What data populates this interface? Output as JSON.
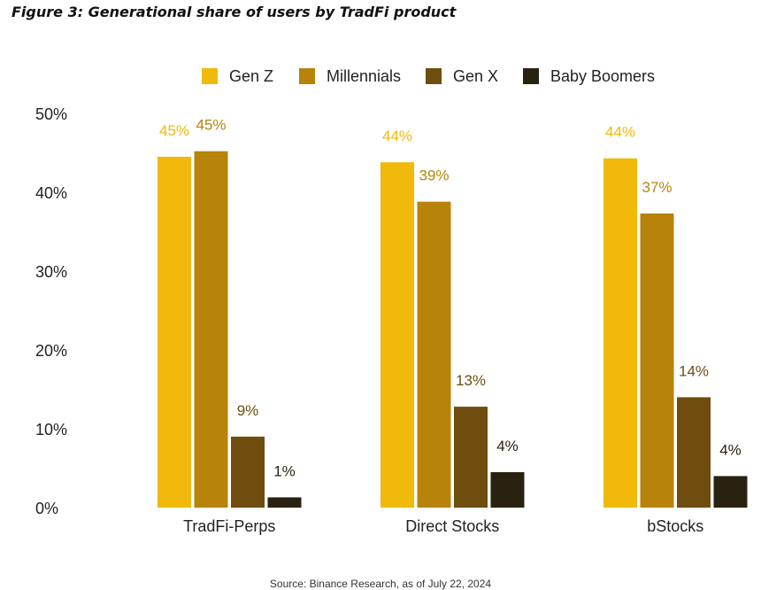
{
  "figure_title": "Figure 3: Generational share of users by TradFi product",
  "source_note": "Source: Binance Research, as of July 22, 2024",
  "chart_data": {
    "type": "bar",
    "title": "",
    "xlabel": "",
    "ylabel": "",
    "categories": [
      "TradFi-Perps",
      "Direct Stocks",
      "bStocks"
    ],
    "series": [
      {
        "name": "Gen Z",
        "color": "#F0B90B",
        "values": [
          44.5,
          43.8,
          44.3
        ],
        "labels": [
          "45%",
          "44%",
          "44%"
        ]
      },
      {
        "name": "Millennials",
        "color": "#B8830A",
        "values": [
          45.2,
          38.8,
          37.3
        ],
        "labels": [
          "45%",
          "39%",
          "37%"
        ]
      },
      {
        "name": "Gen X",
        "color": "#6E4D0E",
        "values": [
          9.0,
          12.8,
          14.0
        ],
        "labels": [
          "9%",
          "13%",
          "14%"
        ]
      },
      {
        "name": "Baby Boomers",
        "color": "#2A2210",
        "values": [
          1.3,
          4.5,
          4.0
        ],
        "labels": [
          "1%",
          "4%",
          "4%"
        ]
      }
    ],
    "yticks": [
      "0%",
      "10%",
      "20%",
      "30%",
      "40%",
      "50%"
    ],
    "ylim": [
      0,
      50
    ],
    "grid": false,
    "legend_position": "top"
  }
}
